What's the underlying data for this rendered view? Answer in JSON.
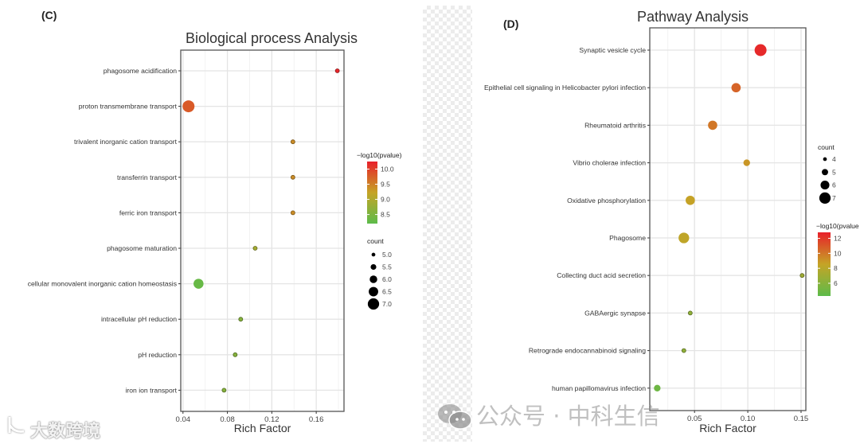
{
  "chart_data": [
    {
      "panel_label": "(C)",
      "type": "scatter",
      "title": "Biological process Analysis",
      "xlabel": "Rich Factor",
      "ylabel": "",
      "xlim": [
        0.038,
        0.185
      ],
      "xticks": [
        0.04,
        0.08,
        0.12,
        0.16
      ],
      "xtick_labels": [
        "0.04",
        "0.08",
        "0.12",
        "0.16"
      ],
      "grid": true,
      "categories": [
        "phagosome acidification",
        "proton transmembrane transport",
        "trivalent inorganic cation transport",
        "transferrin transport",
        "ferric iron transport",
        "phagosome maturation",
        "cellular monovalent inorganic cation homeostasis",
        "intracellular pH reduction",
        "pH reduction",
        "iron ion transport"
      ],
      "rich_factor": [
        0.179,
        0.045,
        0.139,
        0.139,
        0.139,
        0.105,
        0.054,
        0.092,
        0.087,
        0.077
      ],
      "count": [
        5,
        7,
        5,
        5,
        5,
        5,
        6.5,
        5,
        5,
        5
      ],
      "neg_log10_pvalue": [
        10.2,
        9.8,
        9.4,
        9.4,
        9.4,
        8.9,
        8.3,
        8.6,
        8.6,
        8.6
      ],
      "color_legend": {
        "title": "−log10(pvalue)",
        "range": [
          8.2,
          10.25
        ],
        "ticks": [
          10.0,
          9.5,
          9.0,
          8.5
        ],
        "tick_labels": [
          "10.0",
          "9.5",
          "9.0",
          "8.5"
        ],
        "low_color": "#5dbb4a",
        "mid_color": "#c5a426",
        "high_color": "#e8202a"
      },
      "size_legend": {
        "title": "count",
        "values": [
          5.0,
          5.5,
          6.0,
          6.5,
          7.0
        ],
        "labels": [
          "5.0",
          "5.5",
          "6.0",
          "6.5",
          "7.0"
        ]
      },
      "legend_position": "right"
    },
    {
      "panel_label": "(D)",
      "type": "scatter",
      "title": "Pathway Analysis",
      "xlabel": "Rich Factor",
      "ylabel": "",
      "xlim": [
        0.008,
        0.1545
      ],
      "xticks": [
        0.05,
        0.1,
        0.15
      ],
      "xtick_labels": [
        "0.05",
        "0.10",
        "0.15"
      ],
      "grid": true,
      "categories": [
        "Synaptic vesicle cycle",
        "Epithelial cell signaling in Helicobacter pylori infection",
        "Rheumatoid arthritis",
        "Vibrio cholerae infection",
        "Oxidative phosphorylation",
        "Phagosome",
        "Collecting duct acid secretion",
        "GABAergic synapse",
        "Retrograde endocannabinoid signaling",
        "human papillomavirus infection"
      ],
      "rich_factor": [
        0.112,
        0.089,
        0.067,
        0.099,
        0.046,
        0.04,
        0.151,
        0.046,
        0.04,
        0.015
      ],
      "count": [
        7,
        6,
        6,
        5,
        6,
        6.5,
        4,
        4,
        4,
        5
      ],
      "neg_log10_pvalue": [
        12.5,
        10.6,
        10.0,
        9.0,
        8.6,
        8.3,
        7.0,
        6.4,
        6.4,
        5.0
      ],
      "color_legend": {
        "title": "−log10(pvalue",
        "range": [
          4.3,
          12.8
        ],
        "ticks": [
          12,
          10,
          8,
          6
        ],
        "tick_labels": [
          "12",
          "10",
          "8",
          "6"
        ],
        "low_color": "#5dbb4a",
        "mid_color": "#c5a426",
        "high_color": "#e8202a"
      },
      "size_legend": {
        "title": "count",
        "values": [
          4,
          5,
          6,
          7
        ],
        "labels": [
          "4",
          "5",
          "6",
          "7"
        ]
      },
      "legend_position": "right"
    }
  ],
  "watermarks": {
    "left": "大数跨境",
    "right": "公众号 · 中科生信"
  }
}
